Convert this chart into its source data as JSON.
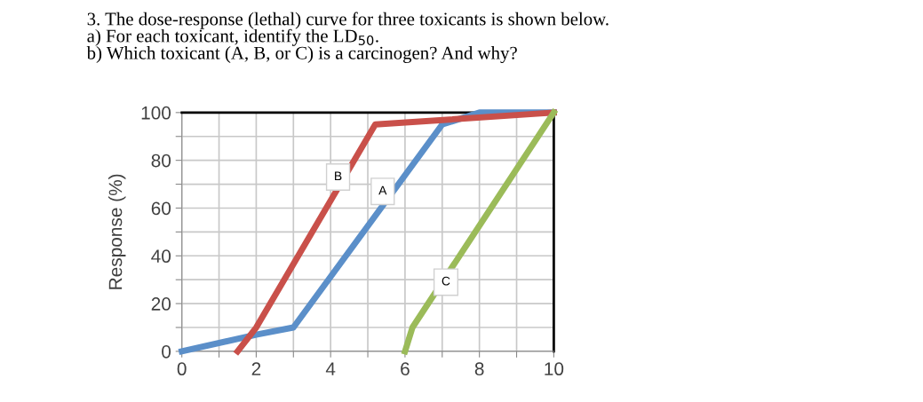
{
  "chart_data": {
    "type": "line",
    "title": "3. The dose-response (lethal) curve for three toxicants is shown below.\na) For each toxicant, identify the LD$_{50}$.\nb) Which toxicant (A, B, or C) is a carcinogen? And why?",
    "ylabel": "Response (%)",
    "series": [
      {
        "color": "#5b8fc9",
        "x": [
          0,
          2,
          3,
          7,
          8,
          10
        ],
        "values": [
          0,
          7,
          10,
          95,
          100,
          100
        ]
      },
      {
        "color": "#c9504a",
        "x": [
          1.5,
          2,
          5.2,
          10
        ],
        "values": [
          0,
          10,
          95,
          100
        ]
      },
      {
        "color": "#9bbb59",
        "x": [
          6,
          6.2,
          10
        ],
        "values": [
          0,
          10,
          100
        ]
      }
    ],
    "annotations": [
      {
        "text": "B",
        "x": 4.2,
        "y": 73
      },
      {
        "text": "A",
        "x": 5.4,
        "y": 67
      },
      {
        "text": "C",
        "x": 7.1,
        "y": 29
      }
    ],
    "xlim": [
      0,
      10
    ],
    "ylim": [
      0,
      100
    ],
    "xticks": [
      0,
      {
        "value": 1,
        "label": null
      },
      2,
      {
        "value": 3,
        "label": null
      },
      4,
      {
        "value": 5,
        "label": null
      },
      6,
      {
        "value": 7,
        "label": null
      },
      8,
      {
        "value": 9,
        "label": null
      },
      10
    ],
    "yticks": [
      0,
      {
        "value": 10,
        "label": null
      },
      20,
      {
        "value": 30,
        "label": null
      },
      40,
      {
        "value": 50,
        "label": null
      },
      60,
      {
        "value": 70,
        "label": null
      },
      80,
      {
        "value": 90,
        "label": null
      },
      100
    ],
    "grid": true,
    "legend": false,
    "marker": "none",
    "line_style": "solid"
  }
}
